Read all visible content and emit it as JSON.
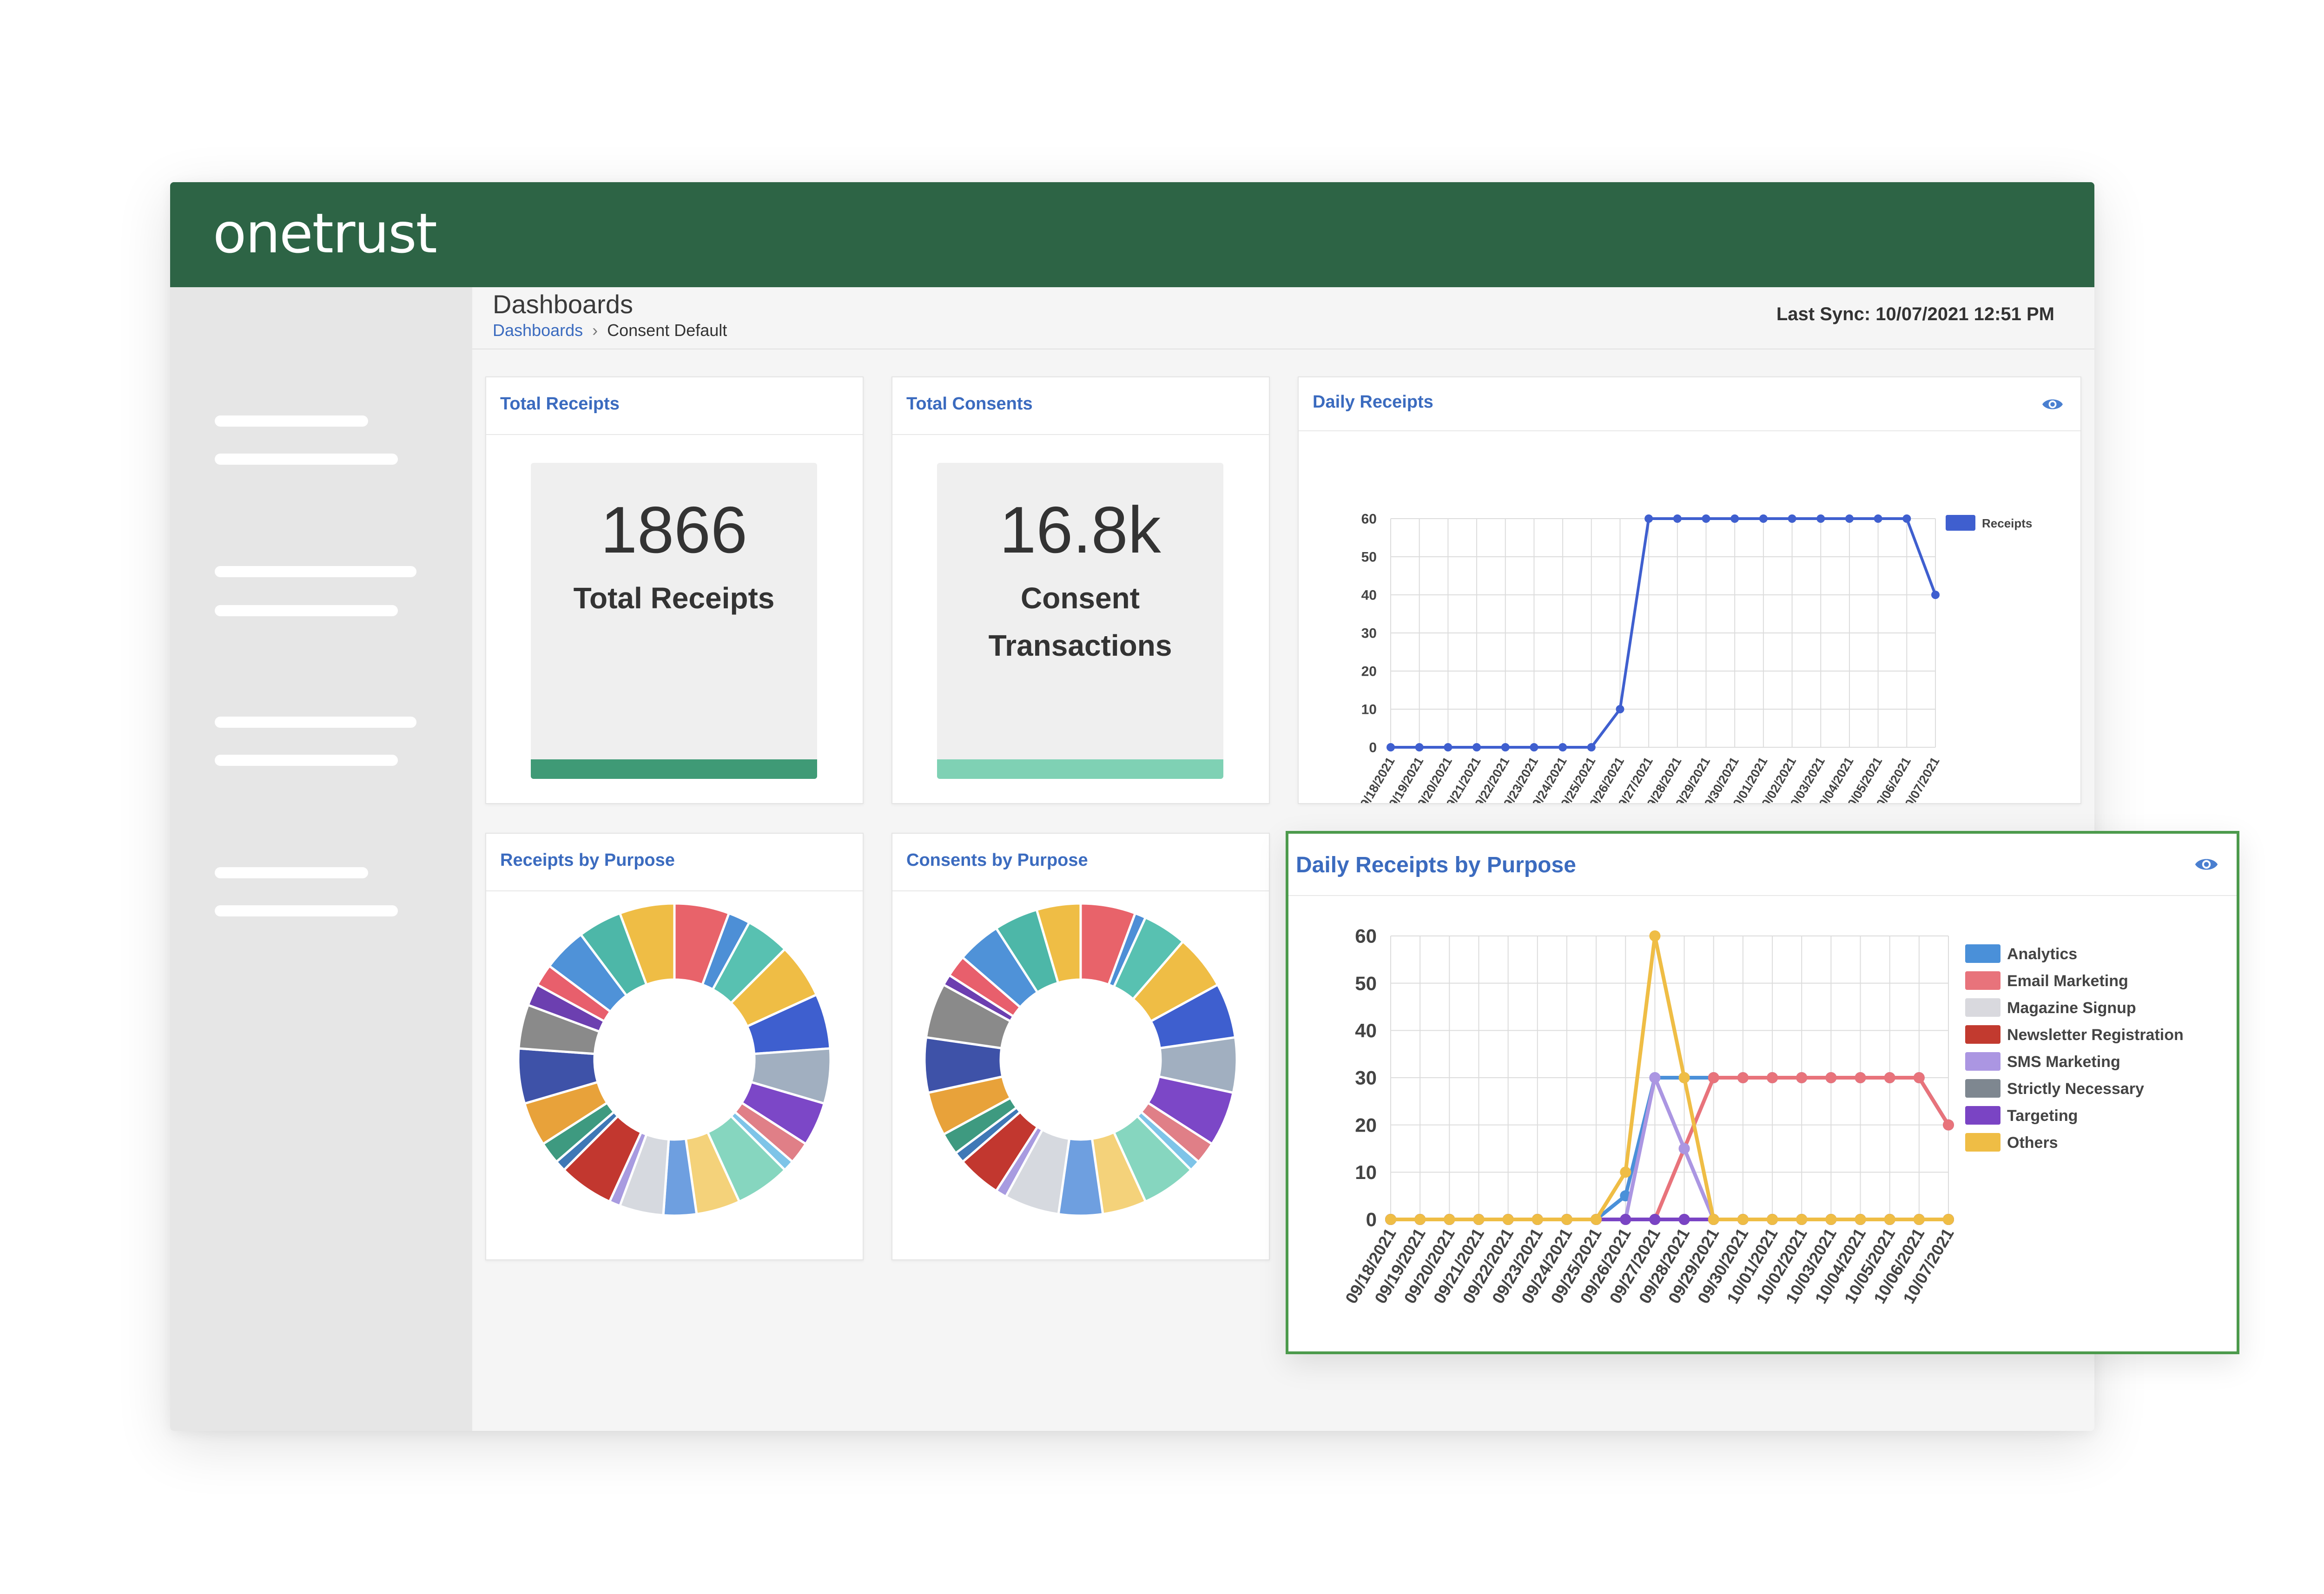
{
  "app": {
    "logo_text": "onetrust"
  },
  "header": {
    "page_title": "Dashboards",
    "breadcrumb": {
      "link": "Dashboards",
      "separator": "›",
      "current": "Consent Default"
    },
    "last_sync": "Last Sync: 10/07/2021 12:51 PM"
  },
  "colors": {
    "brand_green": "#2d6445",
    "link_blue": "#3b6bbf",
    "receipts_bar": "#3f9a76",
    "consents_bar": "#7fd1b4",
    "highlight_border": "#4c9a4c"
  },
  "cards": {
    "total_receipts": {
      "title": "Total Receipts",
      "value": "1866",
      "label": "Total Receipts"
    },
    "total_consents": {
      "title": "Total Consents",
      "value": "16.8k",
      "label": "Consent Transactions"
    },
    "daily_receipts": {
      "title": "Daily Receipts",
      "icon": "eye-icon"
    },
    "receipts_by_purpose": {
      "title": "Receipts by Purpose"
    },
    "consents_by_purpose": {
      "title": "Consents by Purpose"
    },
    "daily_receipts_by_purpose": {
      "title": "Daily Receipts by Purpose",
      "icon": "eye-icon"
    }
  },
  "chart_data": [
    {
      "id": "daily_receipts",
      "type": "line",
      "x": [
        "09/18/2021",
        "09/19/2021",
        "09/20/2021",
        "09/21/2021",
        "09/22/2021",
        "09/23/2021",
        "09/24/2021",
        "09/25/2021",
        "09/26/2021",
        "09/27/2021",
        "09/28/2021",
        "09/29/2021",
        "09/30/2021",
        "10/01/2021",
        "10/02/2021",
        "10/03/2021",
        "10/04/2021",
        "10/05/2021",
        "10/06/2021",
        "10/07/2021"
      ],
      "yticks": [
        0,
        10,
        20,
        30,
        40,
        50,
        60
      ],
      "ylim": [
        0,
        60
      ],
      "grid": true,
      "legend": "right",
      "series": [
        {
          "name": "Receipts",
          "color": "#3f5fcf",
          "values": [
            0,
            0,
            0,
            0,
            0,
            0,
            0,
            0,
            10,
            60,
            60,
            60,
            60,
            60,
            60,
            60,
            60,
            60,
            60,
            40
          ]
        }
      ]
    },
    {
      "id": "receipts_by_purpose",
      "type": "pie",
      "donut": true,
      "colors": [
        "#e8636a",
        "#4d8fd6",
        "#58c1b1",
        "#efbd45",
        "#3e5fcf",
        "#a1afc0",
        "#7c47c7",
        "#e07f87",
        "#7ec4e8",
        "#86d6bf",
        "#f4d27a",
        "#6e9fe0",
        "#d6d9df",
        "#a89be0",
        "#c2372f",
        "#3f78b6",
        "#3e9a80",
        "#e8a23a",
        "#3e52a8",
        "#8a8a8a",
        "#6c3fb0",
        "#e85f6c",
        "#4f92d8",
        "#4db7a8",
        "#efbd45"
      ],
      "values": [
        5,
        2,
        4,
        5,
        5,
        5,
        4,
        2,
        1,
        5,
        4,
        3,
        4,
        1,
        5,
        1,
        2,
        4,
        5,
        4,
        2,
        2,
        4,
        4,
        5
      ]
    },
    {
      "id": "consents_by_purpose",
      "type": "pie",
      "donut": true,
      "colors": [
        "#e8636a",
        "#4d8fd6",
        "#58c1b1",
        "#efbd45",
        "#3e5fcf",
        "#a1afc0",
        "#7c47c7",
        "#e07f87",
        "#7ec4e8",
        "#86d6bf",
        "#f4d27a",
        "#6e9fe0",
        "#d6d9df",
        "#a89be0",
        "#c2372f",
        "#3f78b6",
        "#3e9a80",
        "#e8a23a",
        "#3e52a8",
        "#8a8a8a",
        "#6c3fb0",
        "#e85f6c",
        "#4f92d8",
        "#4db7a8",
        "#efbd45"
      ],
      "values": [
        5,
        1,
        4,
        5,
        5,
        5,
        5,
        2,
        1,
        5,
        4,
        4,
        5,
        1,
        4,
        1,
        2,
        4,
        5,
        5,
        1,
        2,
        4,
        4,
        4
      ]
    },
    {
      "id": "daily_receipts_by_purpose",
      "type": "line",
      "x": [
        "09/18/2021",
        "09/19/2021",
        "09/20/2021",
        "09/21/2021",
        "09/22/2021",
        "09/23/2021",
        "09/24/2021",
        "09/25/2021",
        "09/26/2021",
        "09/27/2021",
        "09/28/2021",
        "09/29/2021",
        "09/30/2021",
        "10/01/2021",
        "10/02/2021",
        "10/03/2021",
        "10/04/2021",
        "10/05/2021",
        "10/06/2021",
        "10/07/2021"
      ],
      "yticks": [
        0,
        10,
        20,
        30,
        40,
        50,
        60
      ],
      "ylim": [
        0,
        60
      ],
      "grid": true,
      "legend": "right",
      "series": [
        {
          "name": "Analytics",
          "color": "#4a90d9",
          "values": [
            0,
            0,
            0,
            0,
            0,
            0,
            0,
            0,
            5,
            30,
            30,
            30,
            30,
            30,
            30,
            30,
            30,
            30,
            30,
            20
          ]
        },
        {
          "name": "Email Marketing",
          "color": "#e8737b",
          "values": [
            0,
            0,
            0,
            0,
            0,
            0,
            0,
            0,
            0,
            0,
            15,
            30,
            30,
            30,
            30,
            30,
            30,
            30,
            30,
            20
          ]
        },
        {
          "name": "Magazine Signup",
          "color": "#d9d9de",
          "values": [
            0,
            0,
            0,
            0,
            0,
            0,
            0,
            0,
            0,
            0,
            0,
            0,
            0,
            0,
            0,
            0,
            0,
            0,
            0,
            0
          ]
        },
        {
          "name": "Newsletter Registration",
          "color": "#c23a2f",
          "values": [
            0,
            0,
            0,
            0,
            0,
            0,
            0,
            0,
            0,
            0,
            0,
            0,
            0,
            0,
            0,
            0,
            0,
            0,
            0,
            0
          ]
        },
        {
          "name": "SMS Marketing",
          "color": "#ab96e2",
          "values": [
            0,
            0,
            0,
            0,
            0,
            0,
            0,
            0,
            0,
            30,
            15,
            0,
            0,
            0,
            0,
            0,
            0,
            0,
            0,
            0
          ]
        },
        {
          "name": "Strictly Necessary",
          "color": "#7e8790",
          "values": [
            0,
            0,
            0,
            0,
            0,
            0,
            0,
            0,
            0,
            0,
            0,
            0,
            0,
            0,
            0,
            0,
            0,
            0,
            0,
            0
          ]
        },
        {
          "name": "Targeting",
          "color": "#7a44c4",
          "values": [
            0,
            0,
            0,
            0,
            0,
            0,
            0,
            0,
            0,
            0,
            0,
            0,
            0,
            0,
            0,
            0,
            0,
            0,
            0,
            0
          ]
        },
        {
          "name": "Others",
          "color": "#efbd45",
          "values": [
            0,
            0,
            0,
            0,
            0,
            0,
            0,
            0,
            10,
            60,
            30,
            0,
            0,
            0,
            0,
            0,
            0,
            0,
            0,
            0
          ]
        }
      ]
    }
  ]
}
